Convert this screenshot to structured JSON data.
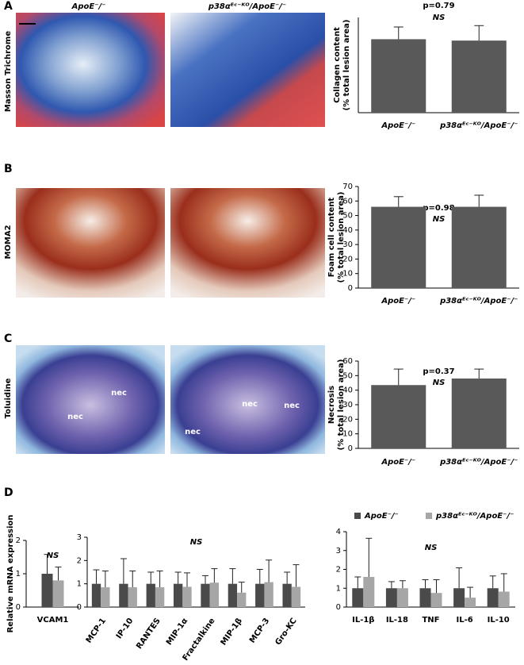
{
  "columns": [
    "ApoE⁻/⁻",
    "p38αᴱᶜ⁻ᴷᴼ/ApoE⁻/⁻"
  ],
  "panels": [
    {
      "label": "A",
      "row_label": "Masson Trichrome"
    },
    {
      "label": "B",
      "row_label": "MOMA2"
    },
    {
      "label": "C",
      "row_label": "Toluidine",
      "image_labels": [
        "nec",
        "nec",
        "nec",
        "nec",
        "nec"
      ]
    },
    {
      "label": "D"
    }
  ],
  "chart_data": [
    {
      "type": "bar",
      "ylabel": [
        "Collagen content",
        "(% total lesion area)"
      ],
      "annotations": [
        "p=0.79",
        "NS"
      ],
      "categories": [
        "ApoE⁻/⁻",
        "p38αᴱᶜ⁻ᴷᴼ/ApoE⁻/⁻"
      ],
      "values": [
        54,
        53
      ],
      "errors": [
        9,
        11
      ],
      "color": "#595959",
      "ylim": [
        0,
        70
      ]
    },
    {
      "type": "bar",
      "ylabel": [
        "Foam cell content",
        "(% total lesion area)"
      ],
      "annotations": [
        "p=0.98",
        "NS"
      ],
      "categories": [
        "ApoE⁻/⁻",
        "p38αᴱᶜ⁻ᴷᴼ/ApoE⁻/⁻"
      ],
      "values": [
        56,
        56
      ],
      "errors": [
        7,
        8
      ],
      "color": "#595959",
      "ylim": [
        0,
        70
      ],
      "yticks": [
        0,
        10,
        20,
        30,
        40,
        50,
        60,
        70
      ]
    },
    {
      "type": "bar",
      "ylabel": [
        "Necrosis",
        "(% total lesion area)"
      ],
      "annotations": [
        "p=0.37",
        "NS"
      ],
      "categories": [
        "ApoE⁻/⁻",
        "p38αᴱᶜ⁻ᴷᴼ/ApoE⁻/⁻"
      ],
      "values": [
        43.5,
        48
      ],
      "errors": [
        11,
        6.5
      ],
      "color": "#595959",
      "ylim": [
        0,
        60
      ],
      "yticks": [
        0,
        10,
        20,
        30,
        40,
        50,
        60
      ]
    },
    {
      "type": "bar",
      "ylabel": [
        "Relative mRNA expression"
      ],
      "annotations": [
        "NS"
      ],
      "categories": [
        "VCAM1"
      ],
      "ylim": [
        0,
        2
      ],
      "yticks": [
        0,
        1,
        2
      ],
      "series": [
        {
          "color": "#4a4a4a",
          "values": [
            1.0
          ],
          "errors": [
            0.58
          ]
        },
        {
          "color": "#a6a6a6",
          "values": [
            0.8
          ],
          "errors": [
            0.4
          ]
        }
      ]
    },
    {
      "type": "bar",
      "annotations": [
        "NS"
      ],
      "categories": [
        "MCP-1",
        "IP-10",
        "RANTES",
        "MIP-1α",
        "Fractalkine",
        "MIP-1β",
        "MCP-3",
        "Gro-KC"
      ],
      "ylim": [
        0,
        3
      ],
      "yticks": [
        0,
        1,
        2,
        3
      ],
      "series": [
        {
          "color": "#4a4a4a",
          "values": [
            1,
            1,
            1,
            1,
            1,
            1,
            1,
            1
          ],
          "errors": [
            0.6,
            1.08,
            0.5,
            0.5,
            0.35,
            0.65,
            0.62,
            0.5
          ]
        },
        {
          "color": "#a6a6a6",
          "values": [
            0.85,
            0.85,
            0.85,
            0.87,
            1.05,
            0.62,
            1.07,
            0.87
          ],
          "errors": [
            0.7,
            0.7,
            0.7,
            0.6,
            0.6,
            0.45,
            0.95,
            0.95
          ]
        }
      ]
    },
    {
      "type": "bar",
      "annotations": [
        "NS"
      ],
      "categories": [
        "IL-1β",
        "IL-18",
        "TNF",
        "IL-6",
        "IL-10"
      ],
      "ylim": [
        0,
        4
      ],
      "yticks": [
        0,
        1,
        2,
        3,
        4
      ],
      "series": [
        {
          "name": "ApoE⁻/⁻",
          "color": "#4a4a4a",
          "values": [
            1,
            1,
            1,
            1,
            1
          ],
          "errors": [
            0.6,
            0.35,
            0.45,
            1.08,
            0.65
          ]
        },
        {
          "name": "p38αᴱᶜ⁻ᴷᴼ/ApoE⁻/⁻",
          "color": "#a6a6a6",
          "values": [
            1.6,
            1.0,
            0.75,
            0.5,
            0.82
          ],
          "errors": [
            2.05,
            0.4,
            0.7,
            0.55,
            0.95
          ]
        }
      ]
    }
  ]
}
